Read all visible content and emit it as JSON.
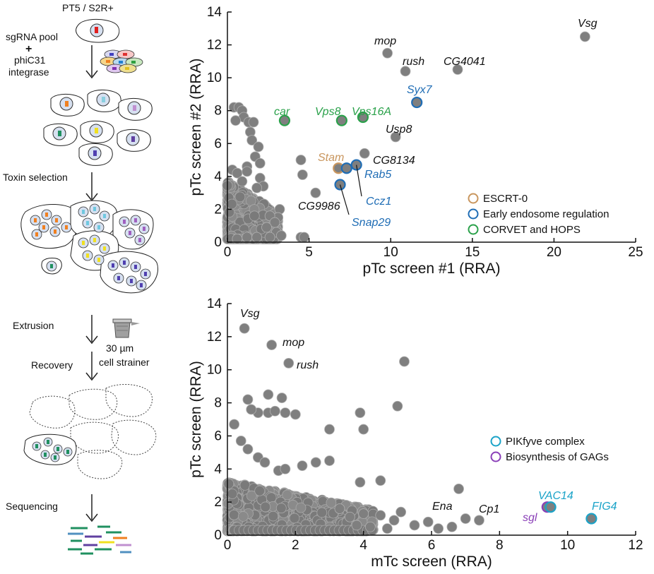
{
  "workflow": {
    "cell_line": "PT5 / S2R+",
    "pool_line1": "sgRNA pool",
    "plus": "+",
    "pool_line2": "phiC31",
    "pool_line3": "integrase",
    "toxin": "Toxin selection",
    "extrusion": "Extrusion",
    "strainer_size": "30 µm",
    "strainer_label": "cell strainer",
    "recovery": "Recovery",
    "sequencing": "Sequencing"
  },
  "colors": {
    "point": "#7f7f7f",
    "escrt": "#c9965e",
    "endosome": "#1f6db5",
    "corvet": "#2aa14a",
    "pikfyve": "#1aa3c8",
    "gag": "#8a3fb8"
  },
  "chart_data": [
    {
      "type": "scatter",
      "xlabel": "pTc screen #1 (RRA)",
      "ylabel": "pTc screen #2 (RRA)",
      "xlim": [
        0,
        25
      ],
      "ylim": [
        0,
        14
      ],
      "xticks": [
        "0",
        "5",
        "10",
        "15",
        "20",
        "25"
      ],
      "yticks": [
        "0",
        "2",
        "4",
        "6",
        "8",
        "10",
        "12",
        "14"
      ],
      "legend": [
        {
          "label": "ESCRT-0",
          "color": "#c9965e"
        },
        {
          "label": "Early endosome regulation",
          "color": "#1f6db5"
        },
        {
          "label": "CORVET and HOPS",
          "color": "#2aa14a"
        }
      ],
      "highlighted": [
        {
          "gene": "Vsg",
          "x": 21.9,
          "y": 12.5,
          "group": "none"
        },
        {
          "gene": "mop",
          "x": 9.8,
          "y": 11.5,
          "group": "none"
        },
        {
          "gene": "rush",
          "x": 10.9,
          "y": 10.4,
          "group": "none"
        },
        {
          "gene": "CG4041",
          "x": 14.1,
          "y": 10.5,
          "group": "none"
        },
        {
          "gene": "Syx7",
          "x": 11.6,
          "y": 8.5,
          "group": "endosome"
        },
        {
          "gene": "car",
          "x": 3.5,
          "y": 7.4,
          "group": "corvet"
        },
        {
          "gene": "Vps8",
          "x": 7.0,
          "y": 7.4,
          "group": "corvet"
        },
        {
          "gene": "Vps16A",
          "x": 8.3,
          "y": 7.6,
          "group": "corvet"
        },
        {
          "gene": "Usp8",
          "x": 10.3,
          "y": 6.4,
          "group": "none"
        },
        {
          "gene": "CG8134",
          "x": 8.4,
          "y": 5.4,
          "group": "none"
        },
        {
          "gene": "Stam",
          "x": 6.8,
          "y": 4.5,
          "group": "escrt"
        },
        {
          "gene": "Rab5",
          "x": 7.3,
          "y": 4.5,
          "group": "endosome"
        },
        {
          "gene": "Ccz1",
          "x": 7.9,
          "y": 4.7,
          "group": "endosome"
        },
        {
          "gene": "Snap29",
          "x": 6.9,
          "y": 3.5,
          "group": "endosome"
        },
        {
          "gene": "CG9986",
          "x": 5.4,
          "y": 3.0,
          "group": "none"
        }
      ],
      "background_points": [
        [
          0.4,
          8.2
        ],
        [
          0.7,
          8.2
        ],
        [
          0.9,
          8.0
        ],
        [
          1.0,
          7.6
        ],
        [
          0.5,
          7.4
        ],
        [
          1.3,
          7.3
        ],
        [
          1.6,
          7.3
        ],
        [
          1.4,
          6.7
        ],
        [
          1.5,
          6.2
        ],
        [
          1.9,
          5.8
        ],
        [
          1.7,
          5.2
        ],
        [
          2.0,
          4.8
        ],
        [
          1.2,
          4.6
        ],
        [
          0.3,
          4.4
        ],
        [
          0.6,
          4.2
        ],
        [
          2.0,
          3.9
        ],
        [
          2.2,
          3.4
        ],
        [
          1.2,
          4.3
        ],
        [
          0.9,
          3.7
        ],
        [
          1.8,
          3.3
        ],
        [
          4.5,
          5.0
        ],
        [
          4.6,
          4.1
        ],
        [
          3.2,
          2.0
        ],
        [
          3.1,
          1.5
        ],
        [
          2.6,
          1.6
        ],
        [
          2.9,
          1.2
        ],
        [
          2.4,
          0.9
        ],
        [
          3.0,
          0.6
        ],
        [
          3.3,
          0.4
        ],
        [
          2.6,
          0.3
        ],
        [
          4.5,
          0.3
        ],
        [
          4.7,
          0.3
        ],
        [
          0.6,
          0.2
        ],
        [
          1.2,
          0.3
        ],
        [
          1.8,
          0.3
        ]
      ],
      "dense_cluster": "many overlapping points near origin (x < 3.2, y < 3.8)"
    },
    {
      "type": "scatter",
      "xlabel": "mTc screen (RRA)",
      "ylabel": "pTc screen (RRA)",
      "xlim": [
        0,
        12
      ],
      "ylim": [
        0,
        14
      ],
      "xticks": [
        "0",
        "2",
        "4",
        "6",
        "8",
        "10",
        "12"
      ],
      "yticks": [
        "0",
        "2",
        "4",
        "6",
        "8",
        "10",
        "12",
        "14"
      ],
      "legend": [
        {
          "label": "PIKfyve complex",
          "color": "#1aa3c8"
        },
        {
          "label": "Biosynthesis of GAGs",
          "color": "#8a3fb8"
        }
      ],
      "highlighted": [
        {
          "gene": "Vsg",
          "x": 0.5,
          "y": 12.5,
          "group": "none"
        },
        {
          "gene": "mop",
          "x": 1.3,
          "y": 11.5,
          "group": "none"
        },
        {
          "gene": "rush",
          "x": 1.8,
          "y": 10.4,
          "group": "none"
        },
        {
          "gene": "Ena",
          "x": 6.8,
          "y": 2.8,
          "group": "none"
        },
        {
          "gene": "Cp1",
          "x": 7.0,
          "y": 1.0,
          "group": "none"
        },
        {
          "gene": "sgl",
          "x": 9.4,
          "y": 1.7,
          "group": "gag"
        },
        {
          "gene": "VAC14",
          "x": 9.5,
          "y": 1.7,
          "group": "pikfyve"
        },
        {
          "gene": "FIG4",
          "x": 10.7,
          "y": 1.0,
          "group": "pikfyve"
        }
      ],
      "background_points": [
        [
          5.2,
          10.5
        ],
        [
          0.2,
          6.7
        ],
        [
          0.4,
          5.7
        ],
        [
          0.6,
          5.2
        ],
        [
          0.9,
          4.7
        ],
        [
          1.1,
          4.4
        ],
        [
          1.5,
          3.9
        ],
        [
          1.7,
          4.0
        ],
        [
          2.2,
          4.2
        ],
        [
          2.6,
          4.4
        ],
        [
          3.0,
          4.5
        ],
        [
          3.9,
          3.2
        ],
        [
          4.5,
          3.3
        ],
        [
          0.9,
          7.4
        ],
        [
          0.6,
          8.2
        ],
        [
          0.7,
          7.6
        ],
        [
          1.2,
          7.4
        ],
        [
          1.4,
          7.5
        ],
        [
          1.7,
          7.4
        ],
        [
          2.0,
          7.3
        ],
        [
          3.0,
          6.4
        ],
        [
          4.0,
          6.4
        ],
        [
          3.9,
          7.4
        ],
        [
          5.0,
          7.8
        ],
        [
          1.2,
          8.5
        ],
        [
          1.6,
          8.3
        ],
        [
          5.1,
          1.4
        ],
        [
          4.5,
          1.2
        ],
        [
          4.9,
          0.9
        ],
        [
          5.5,
          0.6
        ],
        [
          6.2,
          0.4
        ],
        [
          5.9,
          0.8
        ],
        [
          6.6,
          0.5
        ],
        [
          7.4,
          0.9
        ],
        [
          4.2,
          0.5
        ],
        [
          4.7,
          0.4
        ],
        [
          3.8,
          0.6
        ],
        [
          4.0,
          1.3
        ],
        [
          3.3,
          1.6
        ],
        [
          3.6,
          1.1
        ]
      ],
      "dense_cluster": "many overlapping points along bottom (x < 4.3, y < 3)"
    }
  ]
}
